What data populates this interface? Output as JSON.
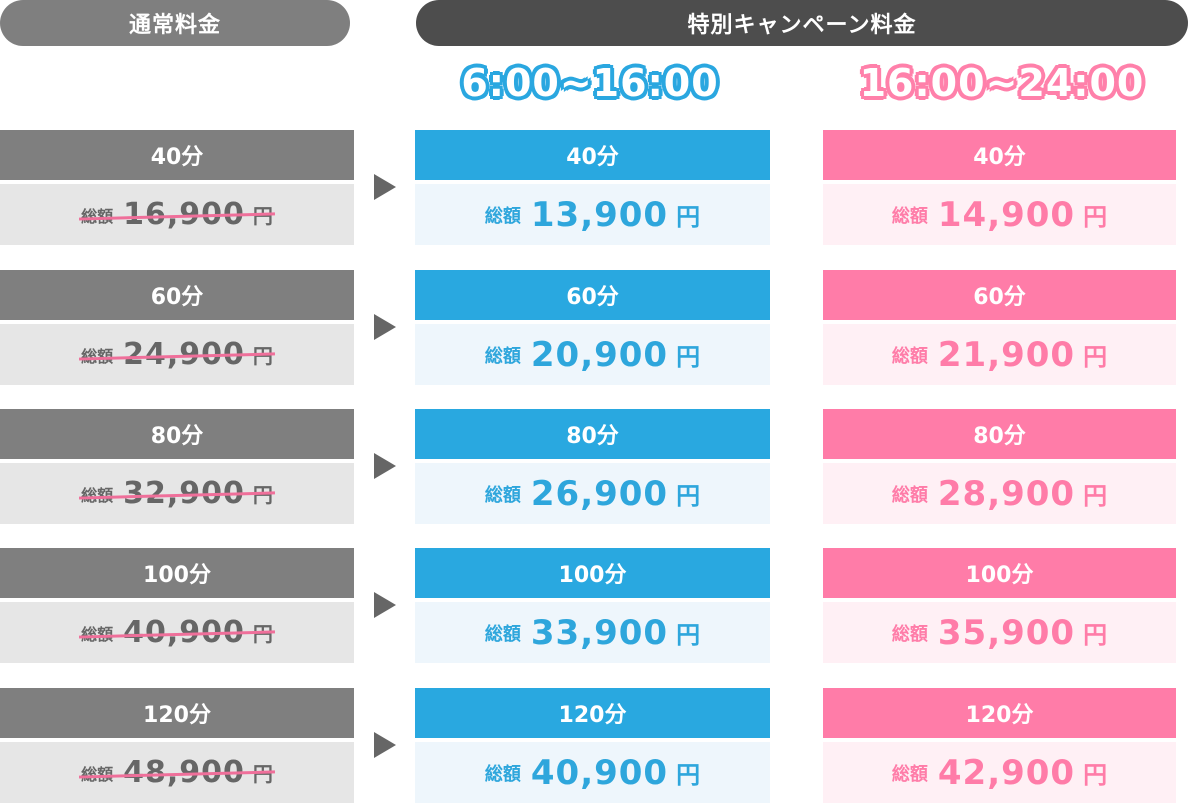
{
  "headers": {
    "regular": "通常料金",
    "campaign": "特別キャンペーン料金",
    "time_day": "6:00~16:00",
    "time_night": "16:00~24:00"
  },
  "labels": {
    "total": "総額",
    "yen": "円"
  },
  "rows": [
    {
      "duration": "40分",
      "regular": "16,900",
      "day": "13,900",
      "night": "14,900"
    },
    {
      "duration": "60分",
      "regular": "24,900",
      "day": "20,900",
      "night": "21,900"
    },
    {
      "duration": "80分",
      "regular": "32,900",
      "day": "26,900",
      "night": "28,900"
    },
    {
      "duration": "100分",
      "regular": "40,900",
      "day": "33,900",
      "night": "35,900"
    },
    {
      "duration": "120分",
      "regular": "48,900",
      "day": "40,900",
      "night": "42,900"
    }
  ],
  "colors": {
    "regular": "#7f7f7f",
    "campaign": "#4d4d4d",
    "day": "#29a8e0",
    "night": "#ff7ca8"
  }
}
